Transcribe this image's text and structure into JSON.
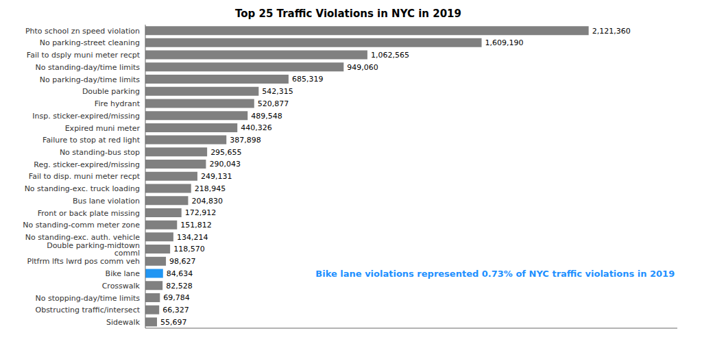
{
  "chart_data": {
    "type": "bar",
    "orientation": "horizontal",
    "title": "Top 25 Traffic Violations in NYC in 2019",
    "categories": [
      "Phto school zn speed violation",
      "No parking-street cleaning",
      "Fail to dsply muni meter recpt",
      "No standing-day/time limits",
      "No parking-day/time limits",
      "Double parking",
      "Fire hydrant",
      "Insp. sticker-expired/missing",
      "Expired muni meter",
      "Failure to stop at red light",
      "No standing-bus stop",
      "Reg. sticker-expired/missing",
      "Fail to disp. muni meter recpt",
      "No standing-exc. truck loading",
      "Bus lane violation",
      "Front or back plate missing",
      "No standing-comm meter zone",
      "No standing-exc. auth. vehicle",
      "Double parking-midtown comml",
      "Pltfrm lfts lwrd pos comm veh",
      "Bike lane",
      "Crosswalk",
      "No stopping-day/time limits",
      "Obstructing traffic/intersect",
      "Sidewalk"
    ],
    "values": [
      2121360,
      1609190,
      1062565,
      949060,
      685319,
      542315,
      520877,
      489548,
      440326,
      387898,
      295655,
      290043,
      249131,
      218945,
      204830,
      172912,
      151812,
      134214,
      118570,
      98627,
      84634,
      82528,
      69784,
      66327,
      55697
    ],
    "value_labels": [
      "2,121,360",
      "1,609,190",
      "1,062,565",
      "949,060",
      "685,319",
      "542,315",
      "520,877",
      "489,548",
      "440,326",
      "387,898",
      "295,655",
      "290,043",
      "249,131",
      "218,945",
      "204,830",
      "172,912",
      "151,812",
      "134,214",
      "118,570",
      "98,627",
      "84,634",
      "82,528",
      "69,784",
      "66,327",
      "55,697"
    ],
    "colors": [
      "#808080",
      "#808080",
      "#808080",
      "#808080",
      "#808080",
      "#808080",
      "#808080",
      "#808080",
      "#808080",
      "#808080",
      "#808080",
      "#808080",
      "#808080",
      "#808080",
      "#808080",
      "#808080",
      "#808080",
      "#808080",
      "#808080",
      "#808080",
      "#2196F3",
      "#808080",
      "#808080",
      "#808080",
      "#808080"
    ],
    "xlim": [
      0,
      2545632
    ],
    "data_labels": true,
    "tick_labels": "y",
    "grid": false,
    "annotations": [
      {
        "text": "Bike lane violations represented 0.73% of NYC traffic violations in 2019",
        "color": "#1E90FF",
        "category": "Bike lane"
      }
    ]
  }
}
